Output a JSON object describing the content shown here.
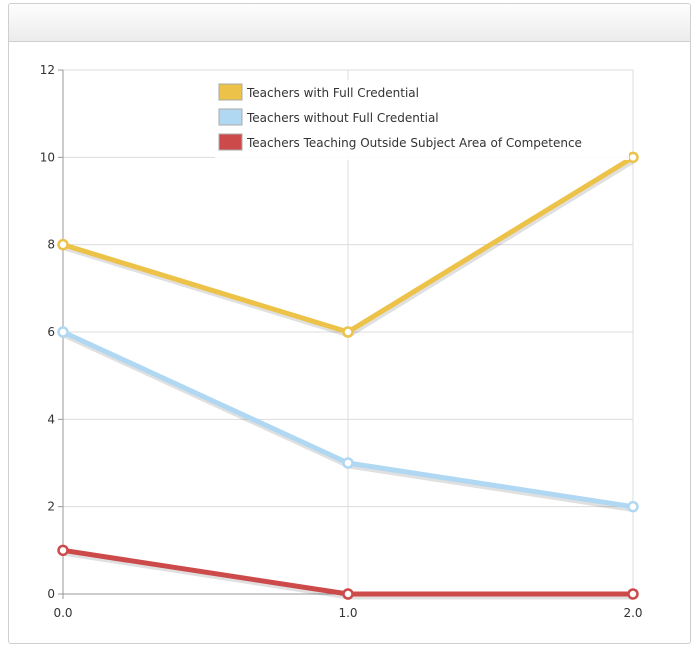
{
  "panel": {
    "title": ""
  },
  "chart_data": {
    "type": "line",
    "title": "",
    "xlabel": "",
    "ylabel": "",
    "x": [
      0.0,
      1.0,
      2.0
    ],
    "x_tick_labels": [
      "0.0",
      "1.0",
      "2.0"
    ],
    "xlim": [
      0,
      2
    ],
    "ylim": [
      0,
      12
    ],
    "y_ticks": [
      0,
      2,
      4,
      6,
      8,
      10,
      12
    ],
    "y_tick_labels": [
      "0",
      "2",
      "4",
      "6",
      "8",
      "10",
      "12"
    ],
    "grid": true,
    "legend_position": "top-center",
    "series": [
      {
        "name": "Teachers with Full Credential",
        "color": "#ecc248",
        "values": [
          8,
          6,
          10
        ]
      },
      {
        "name": "Teachers without Full Credential",
        "color": "#b0d8f2",
        "values": [
          6,
          3,
          2
        ]
      },
      {
        "name": "Teachers Teaching Outside Subject Area of Competence",
        "color": "#cd4a4a",
        "values": [
          1,
          0,
          0
        ]
      }
    ]
  }
}
